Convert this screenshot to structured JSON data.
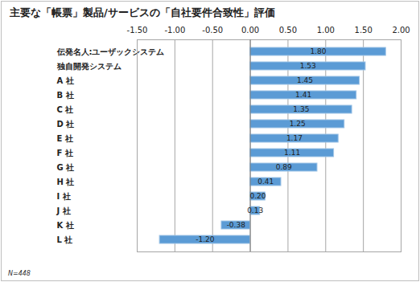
{
  "chart_data": {
    "type": "bar",
    "orientation": "horizontal",
    "title": "主要な「帳票」製品/サービスの「自社要件合致性」評価",
    "annotations": [
      "N=448"
    ],
    "categories": [
      "伝発名人:ユーザックシステム",
      "独自開発システム",
      "A 社",
      "B 社",
      "C 社",
      "D 社",
      "E 社",
      "F 社",
      "G 社",
      "H 社",
      "I 社",
      "J 社",
      "K 社",
      "L 社"
    ],
    "values": [
      1.8,
      1.53,
      1.45,
      1.41,
      1.35,
      1.25,
      1.17,
      1.11,
      0.89,
      0.41,
      0.2,
      0.13,
      -0.38,
      -1.2
    ],
    "value_labels": [
      "1.80",
      "1.53",
      "1.45",
      "1.41",
      "1.35",
      "1.25",
      "1.17",
      "1.11",
      "0.89",
      "0.41",
      "0.20",
      "0.13",
      "-0.38",
      "-1.20"
    ],
    "color": "#5b9bd5",
    "xlim": [
      -1.5,
      2.0
    ],
    "xticks": [
      {
        "value": -1.5,
        "label": "-1.50"
      },
      {
        "value": -1.0,
        "label": "-1.00"
      },
      {
        "value": -0.5,
        "label": "-0.50"
      },
      {
        "value": 0,
        "label": "0.00"
      },
      {
        "value": 0.5,
        "label": "0.50"
      },
      {
        "value": 1.0,
        "label": "1.00"
      },
      {
        "value": 1.5,
        "label": "1.50"
      },
      {
        "value": 2.0,
        "label": "2.00"
      }
    ],
    "grid": true,
    "data_labels": true
  }
}
